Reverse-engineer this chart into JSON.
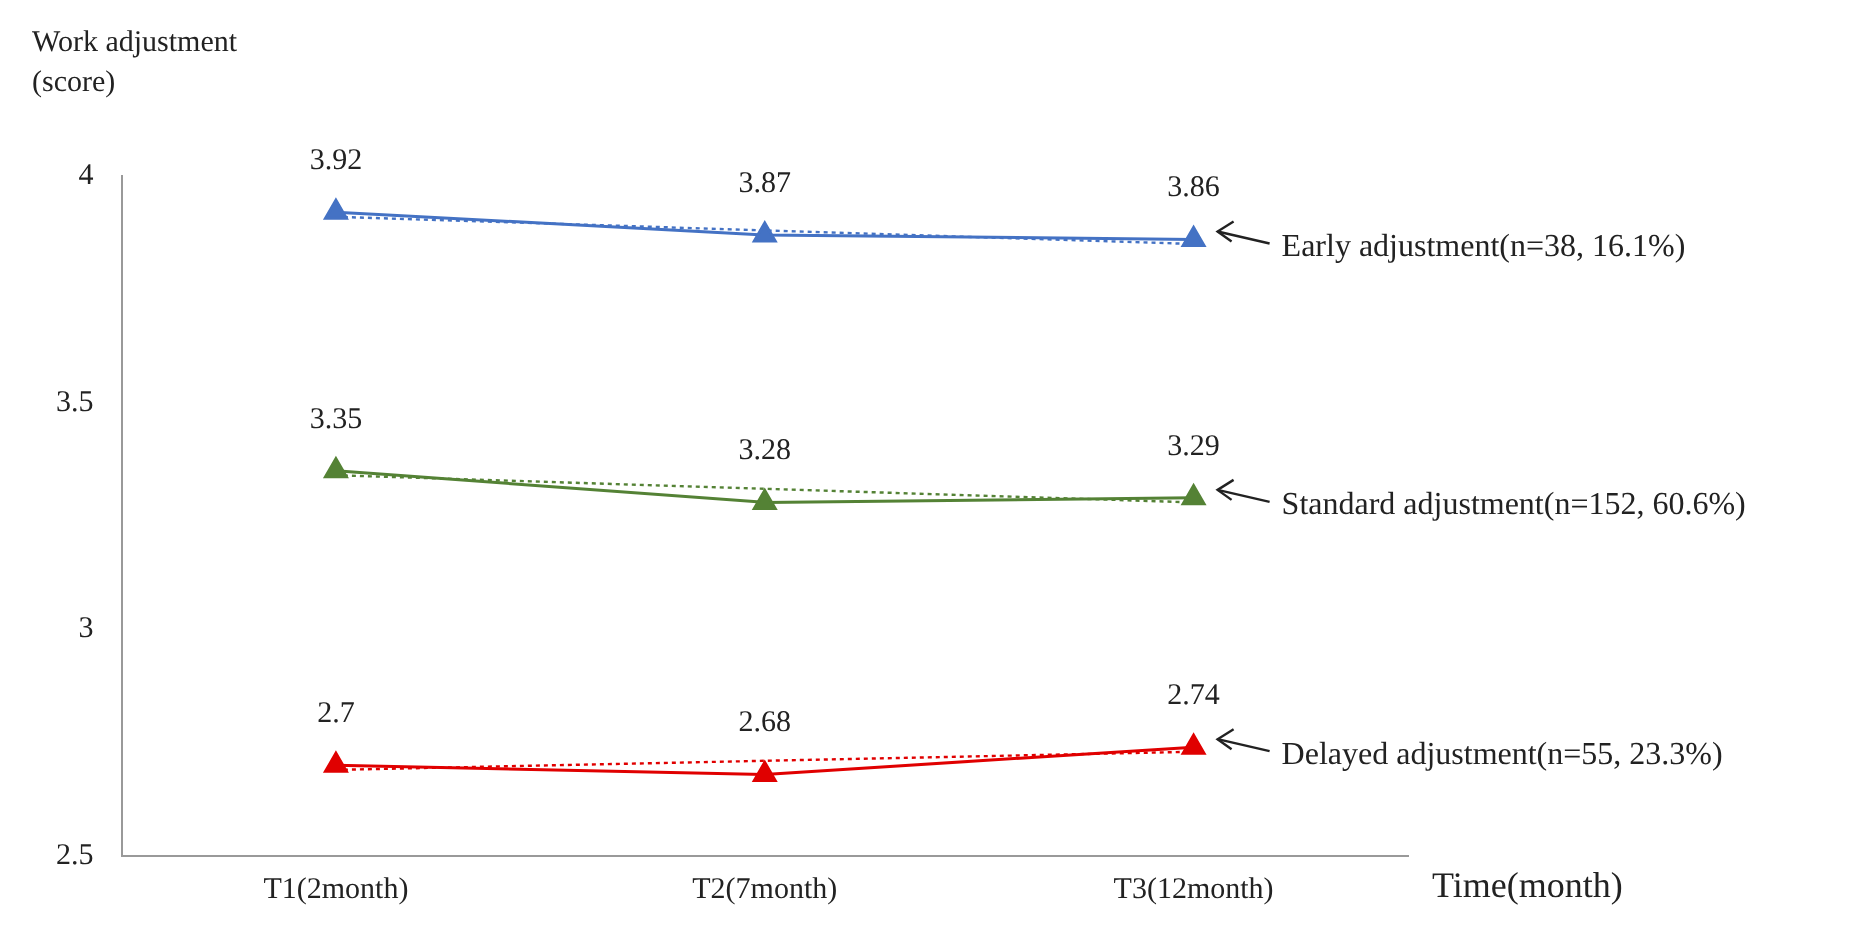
{
  "chart_data": {
    "type": "line",
    "xlabel": "Time(month)",
    "ylabel": "Work adjustment (score)",
    "categories": [
      "T1(2month)",
      "T2(7month)",
      "T3(12month)"
    ],
    "ylim": [
      2.5,
      4
    ],
    "yticks": [
      2.5,
      3,
      3.5,
      4
    ],
    "grid": false,
    "legend": false,
    "marker": "triangle",
    "line_style": "solid",
    "series": [
      {
        "name": "Early adjustment(n=38, 16.1%)",
        "color": "#4472c4",
        "values": [
          3.92,
          3.87,
          3.86
        ],
        "value_labels": [
          "3.92",
          "3.87",
          "3.86"
        ]
      },
      {
        "name": "Standard adjustment(n=152, 60.6%)",
        "color": "#548235",
        "values": [
          3.35,
          3.28,
          3.29
        ],
        "value_labels": [
          "3.35",
          "3.28",
          "3.29"
        ]
      },
      {
        "name": "Delayed adjustment(n=55, 23.3%)",
        "color": "#e00000",
        "values": [
          2.7,
          2.68,
          2.74
        ],
        "value_labels": [
          "2.7",
          "2.68",
          "2.74"
        ]
      },
      {
        "type": "line",
        "color": "#4472c4",
        "marker": "none",
        "line_style": "dotted",
        "x": [
          "T1(2month)",
          "T2(7month)",
          "T3(12month)"
        ],
        "values": [
          3.91,
          3.88,
          3.85
        ]
      },
      {
        "type": "line",
        "color": "#548235",
        "marker": "none",
        "line_style": "dotted",
        "x": [
          "T1(2month)",
          "T2(7month)",
          "T3(12month)"
        ],
        "values": [
          3.34,
          3.31,
          3.28
        ]
      },
      {
        "type": "line",
        "color": "#e00000",
        "marker": "none",
        "line_style": "dotted",
        "x": [
          "T1(2month)",
          "T2(7month)",
          "T3(12month)"
        ],
        "values": [
          2.69,
          2.71,
          2.73
        ]
      }
    ]
  }
}
